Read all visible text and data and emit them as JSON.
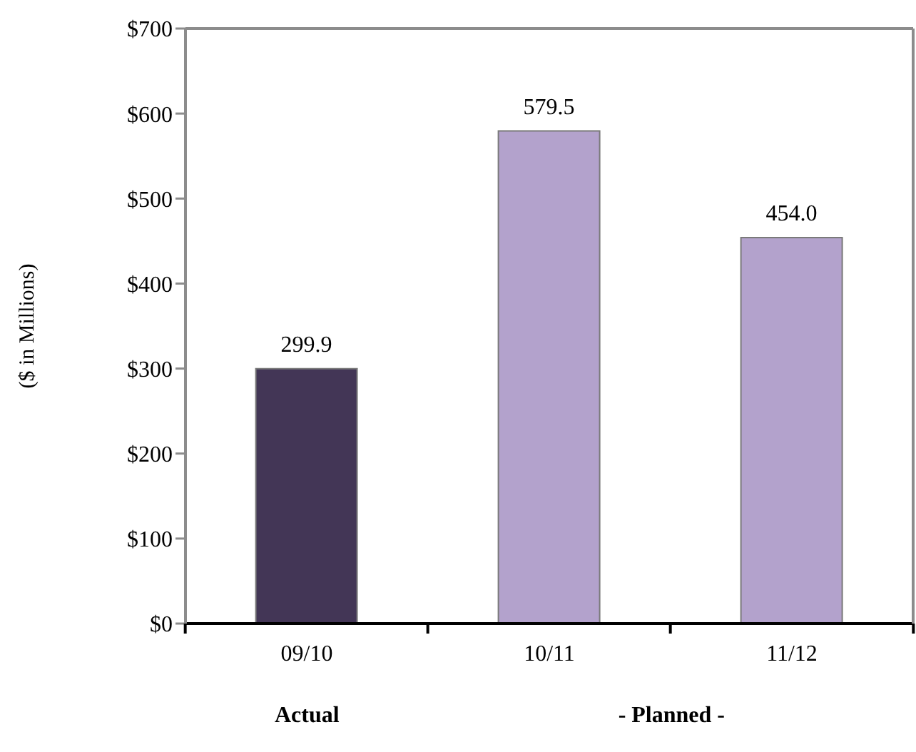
{
  "chart_data": {
    "type": "bar",
    "ylabel": "($ in Millions)",
    "categories": [
      "09/10",
      "10/11",
      "11/12"
    ],
    "values": [
      299.9,
      579.5,
      454.0
    ],
    "colors": [
      "#433656",
      "#b3a2cc",
      "#b3a2cc"
    ],
    "value_labels": [
      "299.9",
      "579.5",
      "454.0"
    ],
    "ylim": [
      0,
      700
    ],
    "yticks": [
      {
        "value": 0,
        "label": "$0"
      },
      {
        "value": 100,
        "label": "$100"
      },
      {
        "value": 200,
        "label": "$200"
      },
      {
        "value": 300,
        "label": "$300"
      },
      {
        "value": 400,
        "label": "$400"
      },
      {
        "value": 500,
        "label": "$500"
      },
      {
        "value": 600,
        "label": "$600"
      },
      {
        "value": 700,
        "label": "$700"
      }
    ],
    "annotations": [
      "Actual",
      "- Planned -"
    ]
  }
}
